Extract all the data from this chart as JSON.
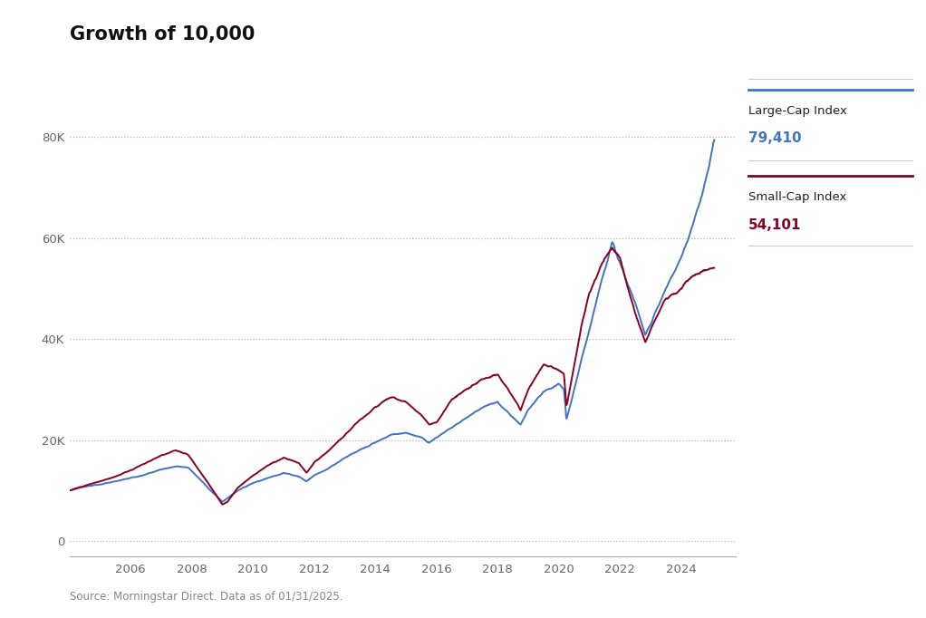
{
  "title": "Growth of 10,000",
  "source_text": "Source: Morningstar Direct. Data as of 01/31/2025.",
  "large_cap_label": "Large-Cap Index",
  "large_cap_value": "79,410",
  "small_cap_label": "Small-Cap Index",
  "small_cap_value": "54,101",
  "large_cap_color": "#4472C4",
  "small_cap_color": "#8B0020",
  "background_color": "#FFFFFF",
  "grid_color": "#BBBBBB",
  "yticks": [
    0,
    20000,
    40000,
    60000,
    80000
  ],
  "ytick_labels": [
    "0",
    "20K",
    "40K",
    "60K",
    "80K"
  ],
  "xtick_years": [
    2006,
    2008,
    2010,
    2012,
    2014,
    2016,
    2018,
    2020,
    2022,
    2024
  ],
  "ylim": [
    -3000,
    90000
  ],
  "xlim_start": 2004.0,
  "xlim_end": 2025.8
}
